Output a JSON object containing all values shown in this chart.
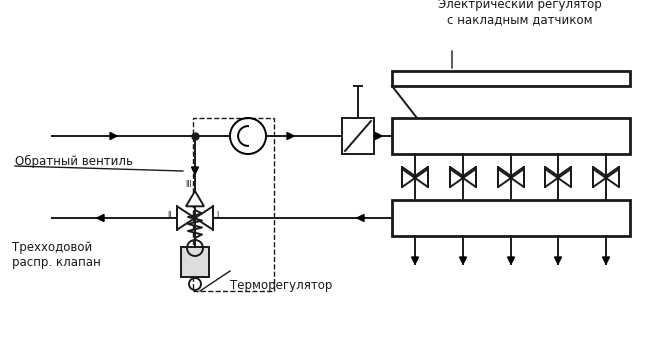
{
  "bg_color": "#ffffff",
  "line_color": "#1a1a1a",
  "texts": {
    "electric_regulator": "Электрический регулятор\nс накладным датчиком",
    "check_valve": "Обратный вентиль",
    "three_way": "Трехходовой\nраспр. клапан",
    "thermoregulator": "Терморегулятор"
  },
  "figsize": [
    6.7,
    3.56
  ],
  "dpi": 100
}
